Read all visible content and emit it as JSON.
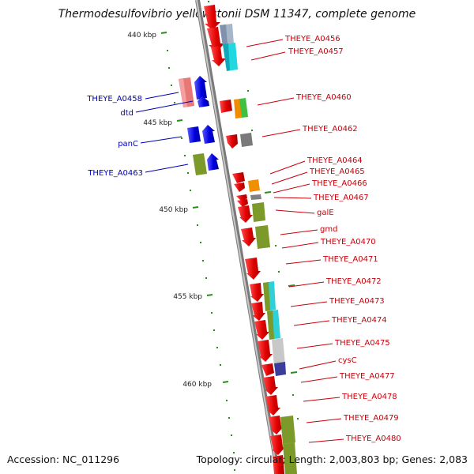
{
  "title": "Thermodesulfovibrio yellowstonii DSM 11347, complete genome",
  "accession": "Accession: NC_011296",
  "summary": "Topology: circular; Length: 2,003,803 bp; Genes: 2,083",
  "scale_labels": [
    "440 kbp",
    "445 kbp",
    "450 kbp",
    "455 kbp",
    "460 kbp"
  ],
  "colors": {
    "forward_label": "#c8000a",
    "reverse_label": "#0000b4",
    "backbone": "#8c8c8c",
    "scale_tick": "#2e8b1f"
  },
  "genes_right": [
    {
      "label": "THEYE_A0456"
    },
    {
      "label": "THEYE_A0457"
    },
    {
      "label": "THEYE_A0460"
    },
    {
      "label": "THEYE_A0462"
    },
    {
      "label": "THEYE_A0464"
    },
    {
      "label": "THEYE_A0465"
    },
    {
      "label": "THEYE_A0466"
    },
    {
      "label": "THEYE_A0467"
    },
    {
      "label": "galE"
    },
    {
      "label": "gmd"
    },
    {
      "label": "THEYE_A0470"
    },
    {
      "label": "THEYE_A0471"
    },
    {
      "label": "THEYE_A0472"
    },
    {
      "label": "THEYE_A0473"
    },
    {
      "label": "THEYE_A0474"
    },
    {
      "label": "THEYE_A0475"
    },
    {
      "label": "cysC"
    },
    {
      "label": "THEYE_A0477"
    },
    {
      "label": "THEYE_A0478"
    },
    {
      "label": "THEYE_A0479"
    },
    {
      "label": "THEYE_A0480"
    }
  ],
  "genes_left": [
    {
      "label": "THEYE_A0458"
    },
    {
      "label": "dtd"
    },
    {
      "label": "panC"
    },
    {
      "label": "THEYE_A0463"
    }
  ]
}
